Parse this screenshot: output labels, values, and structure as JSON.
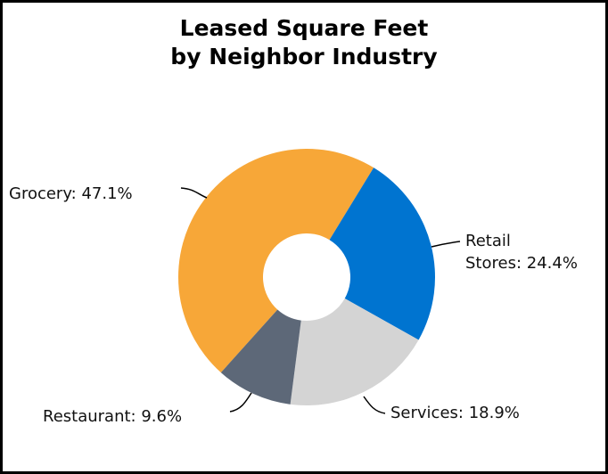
{
  "chart_data": {
    "type": "pie",
    "title": "Leased Square Feet\nby Neighbor Industry",
    "categories": [
      "Grocery: 47.1%",
      "Retail\nStores: 24.4%",
      "Services: 18.9%",
      "Restaurant: 9.6%"
    ],
    "values": [
      47.1,
      24.4,
      18.9,
      9.6
    ],
    "colors": [
      "#f7a738",
      "#0074d0",
      "#d4d4d4",
      "#5d6878"
    ],
    "donut": true
  }
}
